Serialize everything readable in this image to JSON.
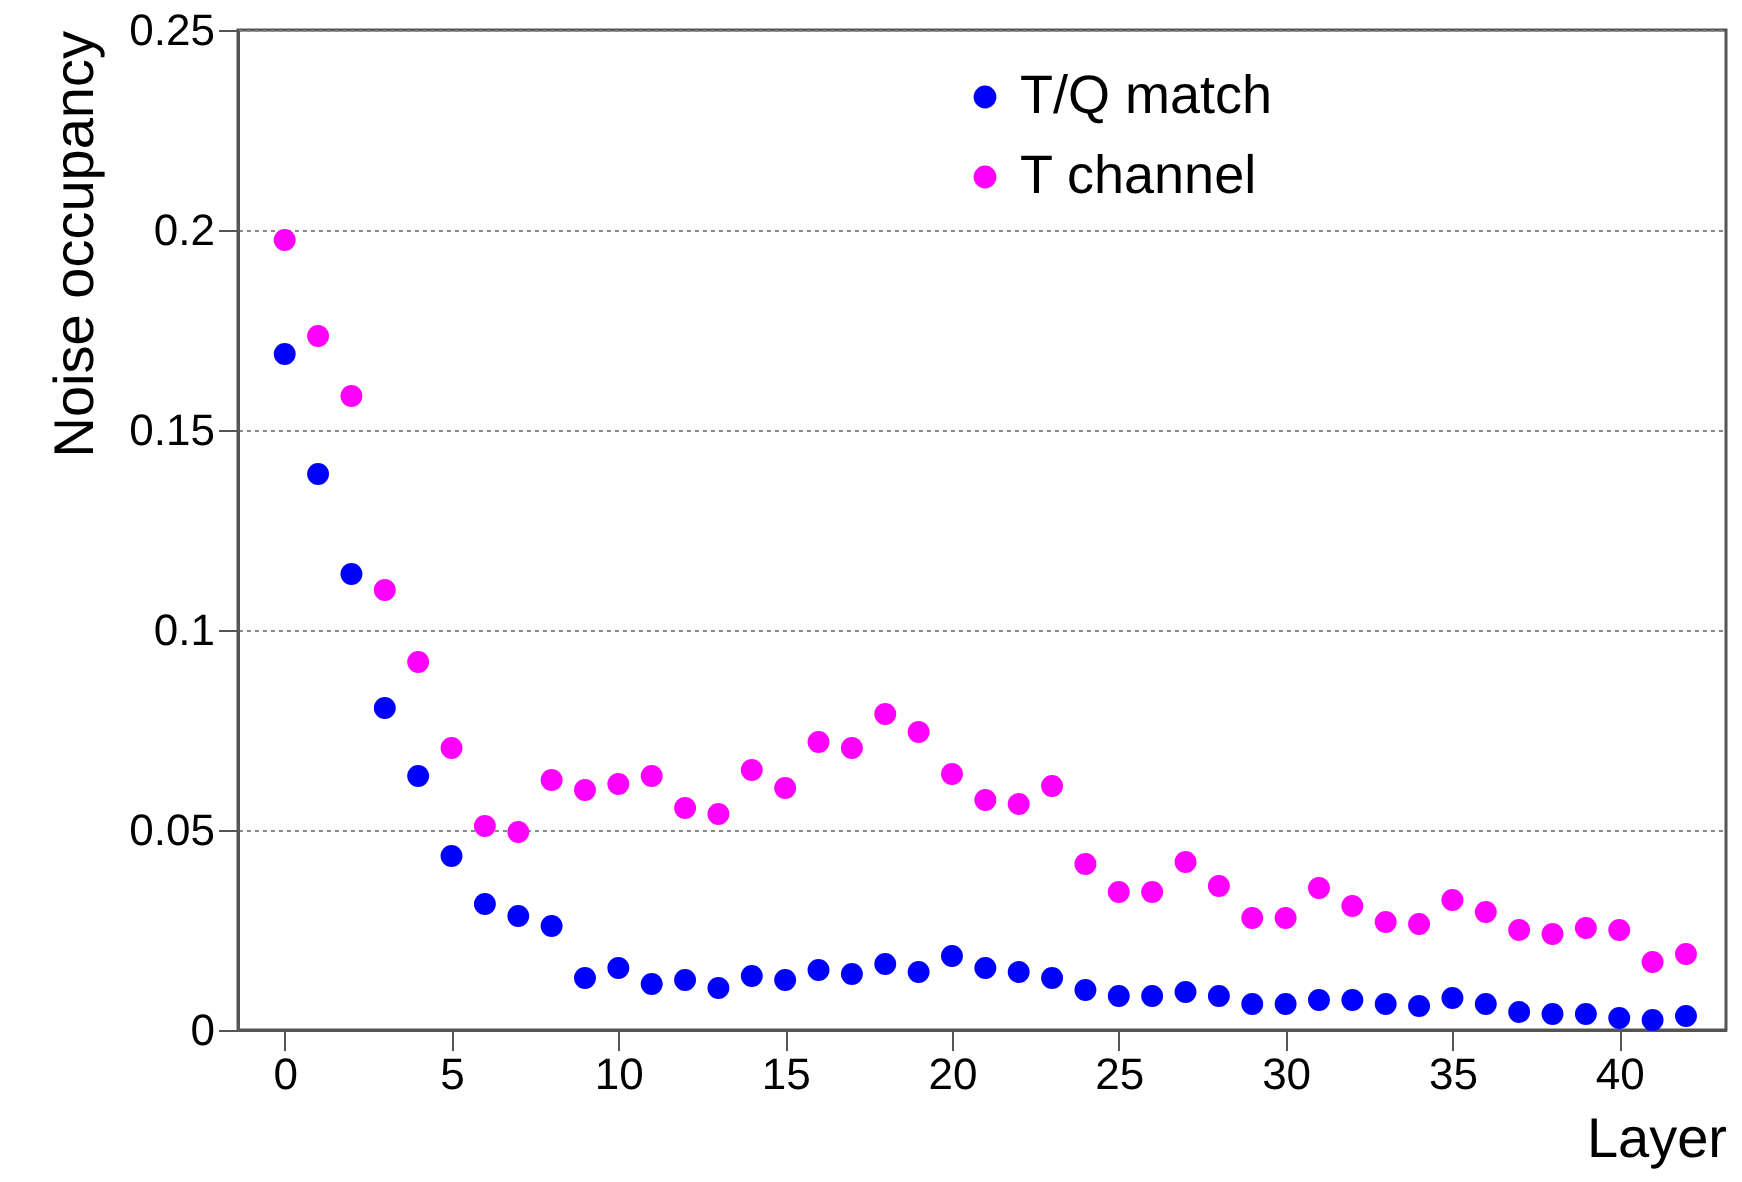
{
  "chart_data": {
    "type": "scatter",
    "xlabel": "Layer",
    "ylabel": "Noise occupancy",
    "x": [
      0,
      1,
      2,
      3,
      4,
      5,
      6,
      7,
      8,
      9,
      10,
      11,
      12,
      13,
      14,
      15,
      16,
      17,
      18,
      19,
      20,
      21,
      22,
      23,
      24,
      25,
      26,
      27,
      28,
      29,
      30,
      31,
      32,
      33,
      34,
      35,
      36,
      37,
      38,
      39,
      40,
      41,
      42
    ],
    "series": [
      {
        "name": "T/Q match",
        "color": "#0000ff",
        "values": [
          0.169,
          0.139,
          0.114,
          0.0805,
          0.0635,
          0.0435,
          0.0315,
          0.0285,
          0.026,
          0.013,
          0.0155,
          0.0115,
          0.0125,
          0.0105,
          0.0135,
          0.0125,
          0.015,
          0.014,
          0.0165,
          0.0145,
          0.0185,
          0.0155,
          0.0145,
          0.013,
          0.01,
          0.0085,
          0.0085,
          0.0095,
          0.0085,
          0.0065,
          0.0065,
          0.0075,
          0.0075,
          0.0065,
          0.006,
          0.008,
          0.0065,
          0.0045,
          0.004,
          0.004,
          0.003,
          0.0025,
          0.0035
        ]
      },
      {
        "name": "T channel",
        "color": "#ff00ff",
        "values": [
          0.1975,
          0.1735,
          0.1585,
          0.11,
          0.092,
          0.0705,
          0.051,
          0.0495,
          0.0625,
          0.06,
          0.0615,
          0.0635,
          0.0555,
          0.054,
          0.065,
          0.0605,
          0.072,
          0.0705,
          0.079,
          0.0745,
          0.064,
          0.0575,
          0.0565,
          0.061,
          0.0415,
          0.0345,
          0.0345,
          0.042,
          0.036,
          0.028,
          0.028,
          0.0355,
          0.031,
          0.027,
          0.0265,
          0.0325,
          0.0295,
          0.025,
          0.024,
          0.0255,
          0.025,
          0.017,
          0.019
        ]
      }
    ],
    "xlim": [
      -1.4,
      43.2
    ],
    "xticks": [
      0,
      5,
      10,
      15,
      20,
      25,
      30,
      35,
      40
    ],
    "ylim": [
      0,
      0.25
    ],
    "yticks": [
      0,
      0.05,
      0.1,
      0.15,
      0.2,
      0.25
    ],
    "grid": "y",
    "legend": "top right",
    "marker": "circle"
  }
}
